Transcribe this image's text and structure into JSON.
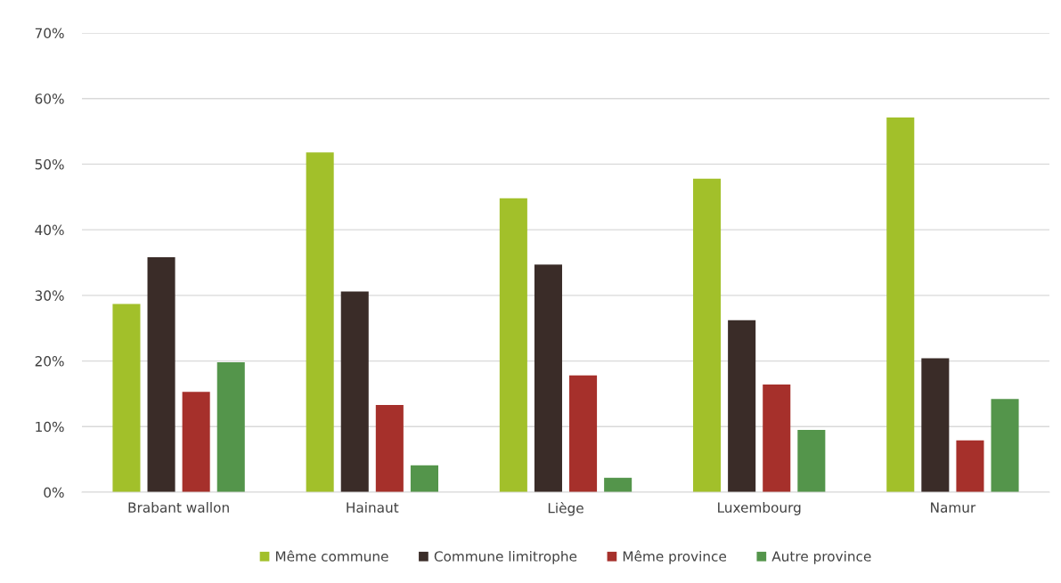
{
  "chart_data": {
    "type": "bar",
    "categories": [
      "Brabant wallon",
      "Hainaut",
      "Liège",
      "Luxembourg",
      "Namur"
    ],
    "series": [
      {
        "name": "Même commune",
        "color": "#a2c02a",
        "values": [
          28.7,
          51.8,
          44.8,
          47.8,
          57.1
        ]
      },
      {
        "name": "Commune limitrophe",
        "color": "#3a2c28",
        "values": [
          35.8,
          30.6,
          34.7,
          26.2,
          20.4
        ]
      },
      {
        "name": "Même province",
        "color": "#a6302b",
        "values": [
          15.3,
          13.3,
          17.8,
          16.4,
          7.9
        ]
      },
      {
        "name": "Autre province",
        "color": "#54954b",
        "values": [
          19.8,
          4.1,
          2.2,
          9.5,
          14.2
        ]
      }
    ],
    "ylim": [
      0,
      70
    ],
    "yticks": [
      {
        "value": 0,
        "label": "0%"
      },
      {
        "value": 10,
        "label": "10%"
      },
      {
        "value": 20,
        "label": "20%"
      },
      {
        "value": 30,
        "label": "30%"
      },
      {
        "value": 40,
        "label": "40%"
      },
      {
        "value": 50,
        "label": "50%"
      },
      {
        "value": 60,
        "label": "60%"
      },
      {
        "value": 70,
        "label": "70%"
      }
    ],
    "grid": "y",
    "legend": "bottom"
  }
}
